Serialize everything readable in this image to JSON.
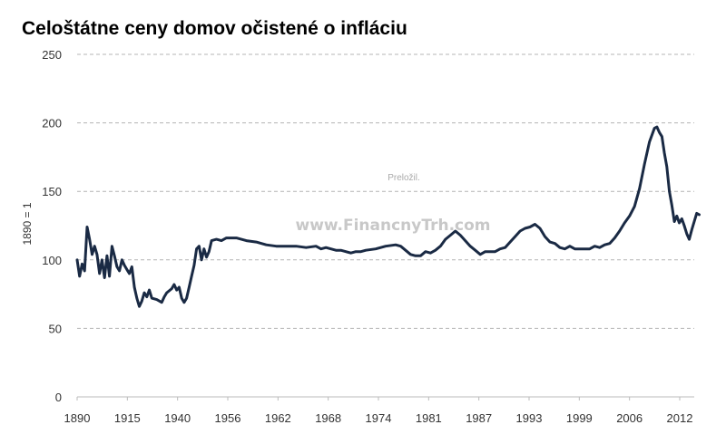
{
  "chart_data": {
    "type": "line",
    "title": "Celoštátne ceny domov očistené o infláciu",
    "ylabel": "1890 = 1",
    "xlabel": "",
    "xlim": [
      1890,
      2014
    ],
    "ylim": [
      0,
      250
    ],
    "grid": "horizontal dashed",
    "y_ticks": [
      0,
      50,
      100,
      150,
      200,
      250
    ],
    "x_tick_labels": [
      "1890",
      "1915",
      "1940",
      "1956",
      "1962",
      "1968",
      "1974",
      "1981",
      "1987",
      "1993",
      "1999",
      "2006",
      "2012"
    ],
    "series": [
      {
        "color": "#1a2a44",
        "points": [
          [
            1890,
            100
          ],
          [
            1890.5,
            88
          ],
          [
            1891,
            97
          ],
          [
            1891.5,
            92
          ],
          [
            1892,
            124
          ],
          [
            1892.5,
            115
          ],
          [
            1893,
            104
          ],
          [
            1893.5,
            110
          ],
          [
            1894,
            104
          ],
          [
            1894.5,
            90
          ],
          [
            1895,
            100
          ],
          [
            1895.5,
            87
          ],
          [
            1896,
            103
          ],
          [
            1896.5,
            88
          ],
          [
            1897,
            110
          ],
          [
            1897.5,
            103
          ],
          [
            1898,
            95
          ],
          [
            1898.5,
            92
          ],
          [
            1899,
            100
          ],
          [
            1899.5,
            96
          ],
          [
            1900,
            93
          ],
          [
            1900.5,
            90
          ],
          [
            1901,
            95
          ],
          [
            1901.5,
            80
          ],
          [
            1902,
            72
          ],
          [
            1902.5,
            66
          ],
          [
            1903,
            70
          ],
          [
            1903.5,
            76
          ],
          [
            1904,
            73
          ],
          [
            1904.5,
            78
          ],
          [
            1905,
            72
          ],
          [
            1906,
            71
          ],
          [
            1907,
            69
          ],
          [
            1907.5,
            73
          ],
          [
            1908,
            76
          ],
          [
            1909,
            79
          ],
          [
            1909.5,
            82
          ],
          [
            1910,
            78
          ],
          [
            1910.5,
            80
          ],
          [
            1911,
            72
          ],
          [
            1911.5,
            69
          ],
          [
            1912,
            72
          ],
          [
            1912.5,
            80
          ],
          [
            1913,
            88
          ],
          [
            1913.5,
            96
          ],
          [
            1914,
            108
          ],
          [
            1914.5,
            110
          ],
          [
            1915,
            100
          ],
          [
            1915.5,
            108
          ],
          [
            1916,
            102
          ],
          [
            1916.5,
            106
          ],
          [
            1917,
            114
          ],
          [
            1918,
            115
          ],
          [
            1919,
            114
          ],
          [
            1920,
            116
          ],
          [
            1922,
            116
          ],
          [
            1924,
            114
          ],
          [
            1926,
            113
          ],
          [
            1928,
            111
          ],
          [
            1930,
            110
          ],
          [
            1932,
            110
          ],
          [
            1934,
            110
          ],
          [
            1936,
            109
          ],
          [
            1938,
            110
          ],
          [
            1939,
            108
          ],
          [
            1940,
            109
          ],
          [
            1941,
            108
          ],
          [
            1942,
            107
          ],
          [
            1943,
            107
          ],
          [
            1944,
            106
          ],
          [
            1945,
            105
          ],
          [
            1946,
            106
          ],
          [
            1947,
            106
          ],
          [
            1948,
            107
          ],
          [
            1950,
            108
          ],
          [
            1952,
            110
          ],
          [
            1954,
            111
          ],
          [
            1955,
            110
          ],
          [
            1956,
            107
          ],
          [
            1957,
            104
          ],
          [
            1958,
            103
          ],
          [
            1959,
            103
          ],
          [
            1960,
            106
          ],
          [
            1961,
            105
          ],
          [
            1962,
            107
          ],
          [
            1963,
            110
          ],
          [
            1964,
            115
          ],
          [
            1965,
            118
          ],
          [
            1966,
            121
          ],
          [
            1967,
            118
          ],
          [
            1968,
            114
          ],
          [
            1969,
            110
          ],
          [
            1970,
            107
          ],
          [
            1971,
            104
          ],
          [
            1972,
            106
          ],
          [
            1973,
            106
          ],
          [
            1974,
            106
          ],
          [
            1975,
            108
          ],
          [
            1976,
            109
          ],
          [
            1977,
            113
          ],
          [
            1978,
            117
          ],
          [
            1979,
            121
          ],
          [
            1980,
            123
          ],
          [
            1981,
            124
          ],
          [
            1982,
            126
          ],
          [
            1983,
            123
          ],
          [
            1984,
            117
          ],
          [
            1985,
            113
          ],
          [
            1986,
            112
          ],
          [
            1987,
            109
          ],
          [
            1988,
            108
          ],
          [
            1989,
            110
          ],
          [
            1990,
            108
          ],
          [
            1991,
            108
          ],
          [
            1992,
            108
          ],
          [
            1993,
            108
          ],
          [
            1994,
            110
          ],
          [
            1995,
            109
          ],
          [
            1996,
            111
          ],
          [
            1997,
            112
          ],
          [
            1998,
            116
          ],
          [
            1999,
            121
          ],
          [
            2000,
            127
          ],
          [
            2001,
            132
          ],
          [
            2002,
            139
          ],
          [
            2003,
            152
          ],
          [
            2004,
            170
          ],
          [
            2005,
            186
          ],
          [
            2006,
            196
          ],
          [
            2006.5,
            197
          ],
          [
            2007,
            193
          ],
          [
            2007.5,
            190
          ],
          [
            2008,
            178
          ],
          [
            2008.5,
            168
          ],
          [
            2009,
            150
          ],
          [
            2009.5,
            140
          ],
          [
            2010,
            128
          ],
          [
            2010.5,
            132
          ],
          [
            2011,
            127
          ],
          [
            2011.5,
            130
          ],
          [
            2012,
            125
          ],
          [
            2012.5,
            119
          ],
          [
            2013,
            115
          ],
          [
            2013.5,
            122
          ],
          [
            2014,
            128
          ],
          [
            2014.5,
            134
          ],
          [
            2015,
            133
          ]
        ]
      }
    ]
  },
  "watermarks": {
    "small": "Preložil.",
    "big": "www.FinancnyTrh.com"
  },
  "line_color": "#1a2a44",
  "grid_color": "#b4b4b4",
  "axis_color": "#bbbbbb",
  "text_color": "#333333"
}
